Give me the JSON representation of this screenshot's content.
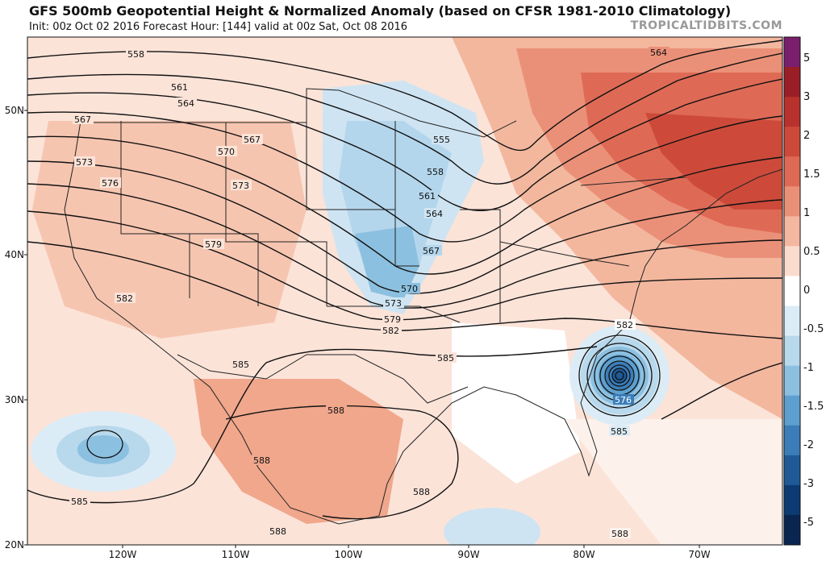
{
  "header": {
    "title": "GFS 500mb Geopotential Height & Normalized Anomaly (based on CFSR 1981-2010 Climatology)",
    "subtitle": "Init: 00z Oct 02 2016   Forecast Hour: [144]   valid at 00z Sat, Oct 08 2016",
    "brand": "TROPICALTIDBITS.COM"
  },
  "map": {
    "lat_labels": [
      "50N",
      "40N",
      "30N",
      "20N"
    ],
    "lon_labels": [
      "120W",
      "110W",
      "100W",
      "90W",
      "80W",
      "70W"
    ],
    "contour_labels": [
      "558",
      "561",
      "564",
      "567",
      "570",
      "573",
      "576",
      "579",
      "582",
      "585",
      "588",
      "555",
      "564"
    ]
  },
  "colorbar": {
    "ticks": [
      "5",
      "3",
      "2",
      "1.5",
      "1",
      "0.5",
      "0",
      "-0.5",
      "-1",
      "-1.5",
      "-2",
      "-3",
      "-5"
    ],
    "colors": [
      "#7a1f6e",
      "#9a1e26",
      "#b8312c",
      "#cd4a3a",
      "#de6a55",
      "#eb9078",
      "#f4b7a0",
      "#fadccf",
      "#ffffff",
      "#dcecf6",
      "#b8d8ec",
      "#8cc0e0",
      "#5d9fce",
      "#3a7db8",
      "#1f5a97",
      "#0d3a72",
      "#0a2550"
    ],
    "label_negative": "",
    "label_positive": ""
  },
  "storm": {
    "center_label": "576",
    "outer_label": "585"
  }
}
